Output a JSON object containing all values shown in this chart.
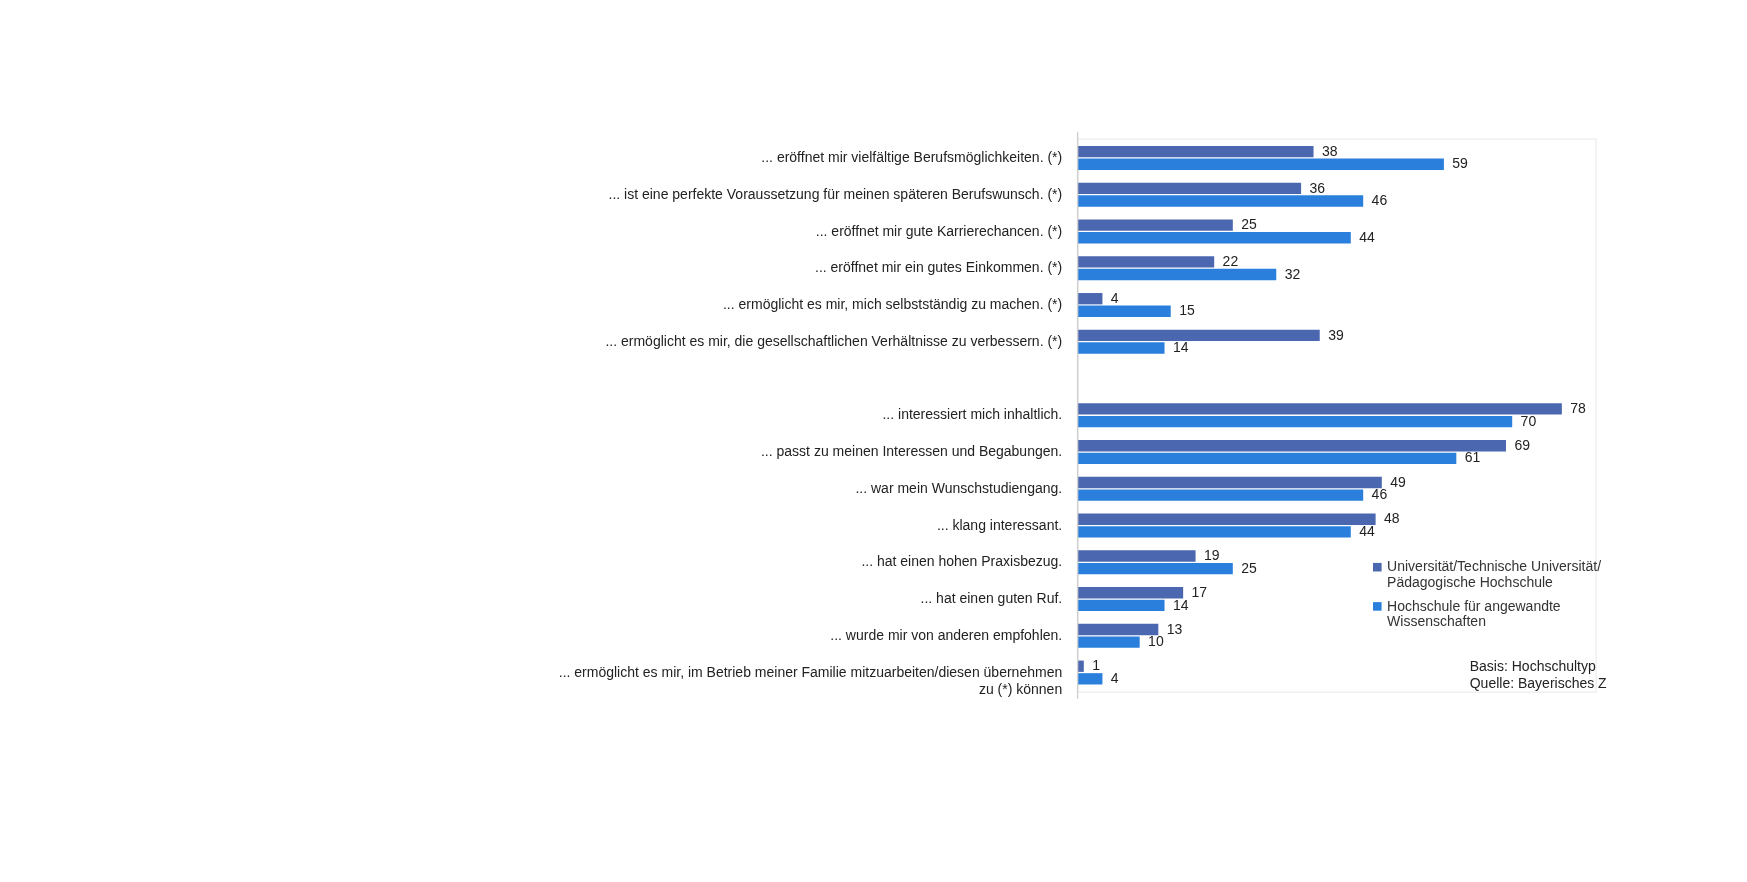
{
  "chart_data": {
    "type": "bar",
    "orientation": "horizontal",
    "data_labels": true,
    "legend": "bottom right",
    "categories": [
      "... eröffnet mir vielfältige Berufsmöglichkeiten.  (*)",
      "... ist eine perfekte Voraussetzung für meinen späteren Berufswunsch. (*)",
      "... eröffnet mir gute Karrierechancen. (*)",
      "... eröffnet mir ein gutes Einkommen. (*)",
      "... ermöglicht es mir, mich selbstständig zu machen. (*)",
      "... ermöglicht es mir, die gesellschaftlichen Verhältnisse zu verbessern. (*)",
      null,
      "... interessiert mich inhaltlich.",
      "... passt zu meinen Interessen und Begabungen.",
      "... war mein Wunschstudiengang.",
      "... klang interessant.",
      "... hat einen hohen Praxisbezug.",
      "... hat einen guten Ruf.",
      "... wurde mir von anderen empfohlen.",
      "... ermöglicht es mir, im Betrieb meiner Familie mitzuarbeiten/diesen übernehmen zu (*) können"
    ],
    "series": [
      {
        "name": "Universität/Technische Universität/ Pädagogische Hochschule",
        "color": "#4a67b0",
        "values": [
          38,
          36,
          25,
          22,
          4,
          39,
          null,
          78,
          69,
          49,
          48,
          19,
          17,
          13,
          1
        ]
      },
      {
        "name": "Hochschule für angewandte Wissenschaften",
        "color": "#2a7fdc",
        "values": [
          59,
          46,
          44,
          32,
          15,
          14,
          null,
          70,
          61,
          46,
          44,
          25,
          14,
          10,
          4
        ]
      }
    ],
    "annotations": [
      "Basis: Hochschultyp",
      "Quelle: Bayerisches Z"
    ]
  }
}
